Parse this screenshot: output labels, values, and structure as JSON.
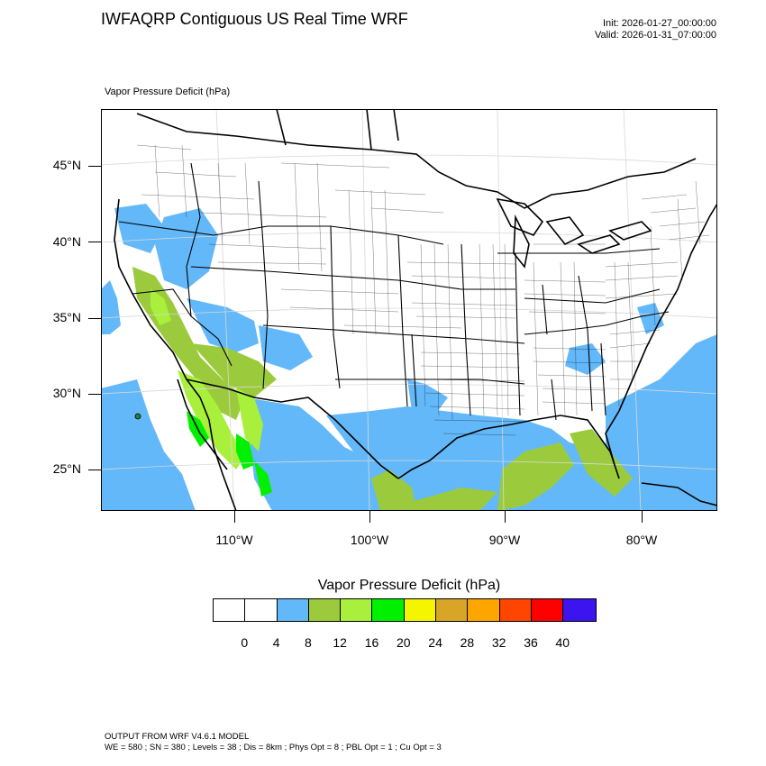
{
  "header": {
    "title": "IWFAQRP Contiguous US Real Time WRF",
    "init": "Init: 2026-01-27_00:00:00",
    "valid": "Valid: 2026-01-31_07:00:00"
  },
  "panel": {
    "subtitle": "Vapor Pressure Deficit   (hPa)"
  },
  "axes": {
    "latitudes": [
      "45°N",
      "40°N",
      "35°N",
      "30°N",
      "25°N"
    ],
    "longitudes": [
      "110°W",
      "100°W",
      "90°W",
      "80°W"
    ]
  },
  "colorbar": {
    "title": "Vapor Pressure Deficit  (hPa)",
    "labels": [
      "0",
      "4",
      "8",
      "12",
      "16",
      "20",
      "24",
      "28",
      "32",
      "36",
      "40"
    ],
    "colors": [
      "#ffffff",
      "#ffffff",
      "#63b8f9",
      "#9bcb3c",
      "#a8f03c",
      "#00f000",
      "#f5f500",
      "#d9a527",
      "#ffa500",
      "#ff4500",
      "#ff0000",
      "#3c14f0"
    ]
  },
  "map_colors": {
    "light_blue": "#63b8f9",
    "olive_green": "#9bcb3c",
    "lime": "#a8f03c",
    "green": "#00f000"
  },
  "footer": {
    "line1": "OUTPUT FROM WRF V4.6.1 MODEL",
    "line2": "WE = 580 ; SN = 380 ; Levels = 38 ; Dis = 8km ; Phys Opt = 8 ; PBL Opt = 1 ; Cu Opt = 3"
  }
}
